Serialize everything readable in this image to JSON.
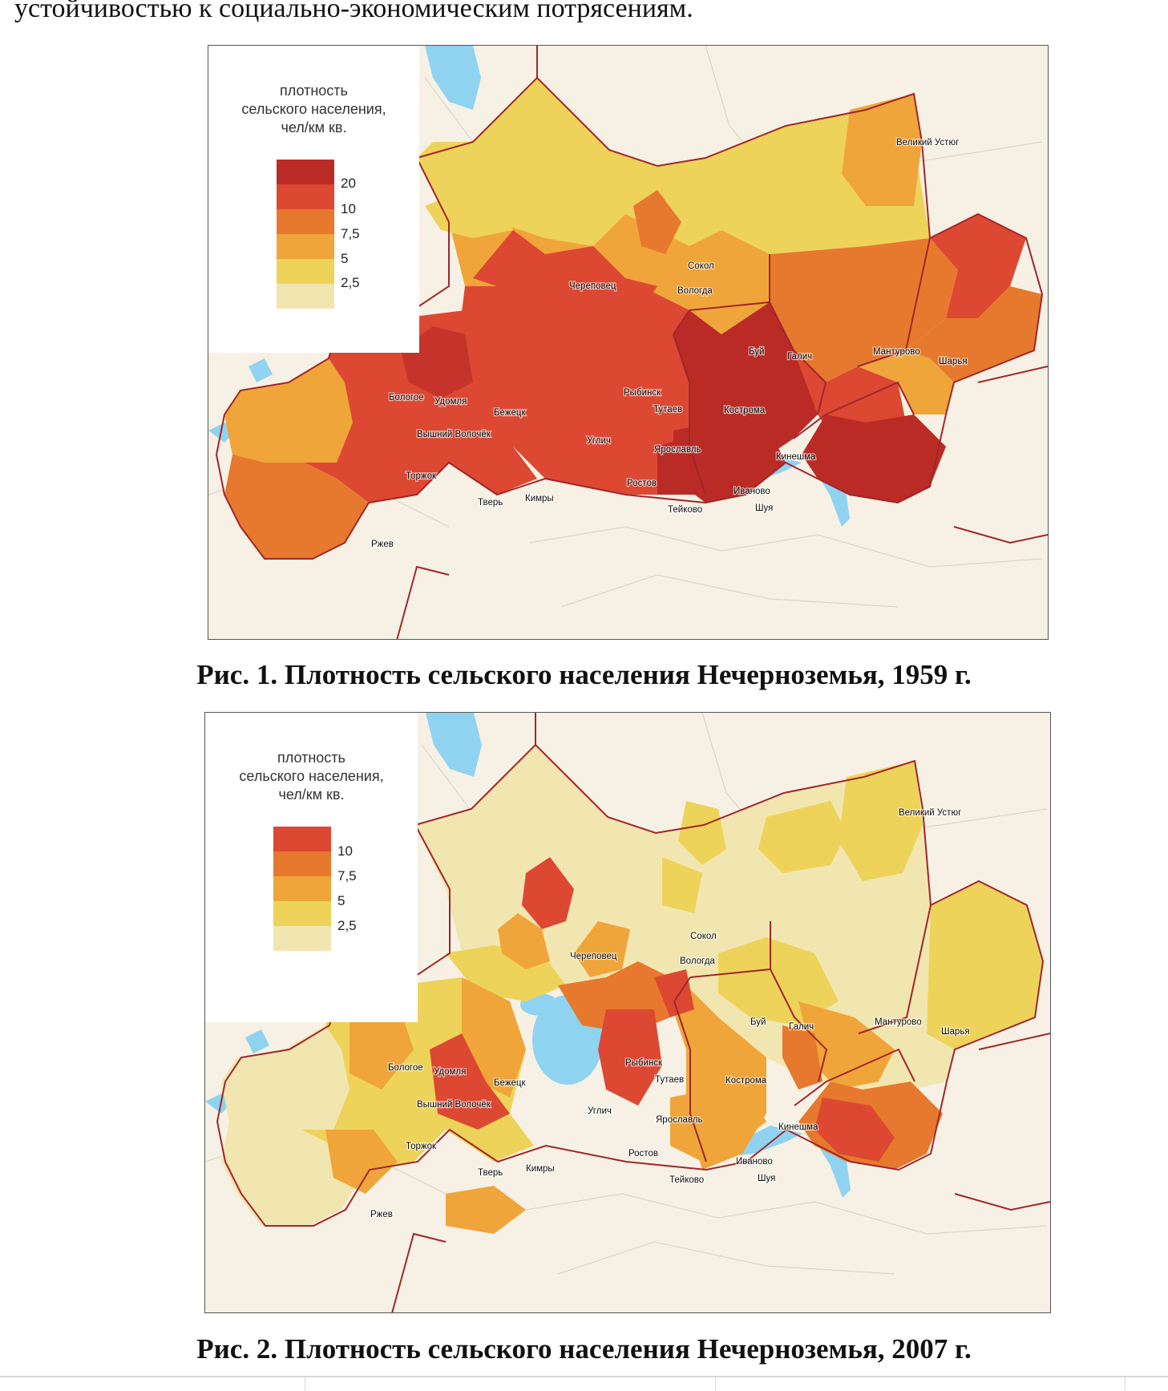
{
  "intro_text": "устойчивостью к социально-экономическим потрясениям.",
  "colors": {
    "background": "#f6f1e4",
    "water": "#8fd3f1",
    "boundary": "#a0262b",
    "scale_1959": [
      "#bb2b26",
      "#dc4832",
      "#e6792d",
      "#efa53a",
      "#eed35a",
      "#f2e6b0"
    ],
    "scale_2007": [
      "#dc4832",
      "#e6792d",
      "#efa53a",
      "#eed35a",
      "#f2e6b0"
    ]
  },
  "figures": [
    {
      "caption": "Рис. 1. Плотность сельского населения Нечерноземья, 1959 г.",
      "legend": {
        "title_lines": [
          "плотность",
          "сельского населения,",
          "чел/км кв."
        ],
        "ticks": [
          "20",
          "10",
          "7,5",
          "5",
          "2,5"
        ]
      },
      "cities": [
        "Великий Устюг",
        "Сокол",
        "Череповец",
        "Вологда",
        "Буй",
        "Галич",
        "Мантурово",
        "Шарья",
        "Бологое",
        "Удомля",
        "Бежецк",
        "Рыбинск",
        "Тутаев",
        "Кострома",
        "Вышний Волочёк",
        "Углич",
        "Ярославль",
        "Кинешма",
        "Торжок",
        "Ростов",
        "Иваново",
        "Кимры",
        "Тверь",
        "Тейково",
        "Шуя",
        "Ржев"
      ]
    },
    {
      "caption": "Рис. 2. Плотность сельского населения Нечерноземья, 2007 г.",
      "legend": {
        "title_lines": [
          "плотность",
          "сельского населения,",
          "чел/км кв."
        ],
        "ticks": [
          "10",
          "7,5",
          "5",
          "2,5"
        ]
      },
      "cities": [
        "Великий Устюг",
        "Сокол",
        "Череповец",
        "Вологда",
        "Буй",
        "Галич",
        "Мантурово",
        "Шарья",
        "Бологое",
        "Удомля",
        "Бежецк",
        "Рыбинск",
        "Тутаев",
        "Кострома",
        "Вышний Волочёк",
        "Углич",
        "Ярославль",
        "Кинешма",
        "Торжок",
        "Ростов",
        "Иваново",
        "Кимры",
        "Тверь",
        "Тейково",
        "Шуя",
        "Ржев"
      ]
    }
  ]
}
